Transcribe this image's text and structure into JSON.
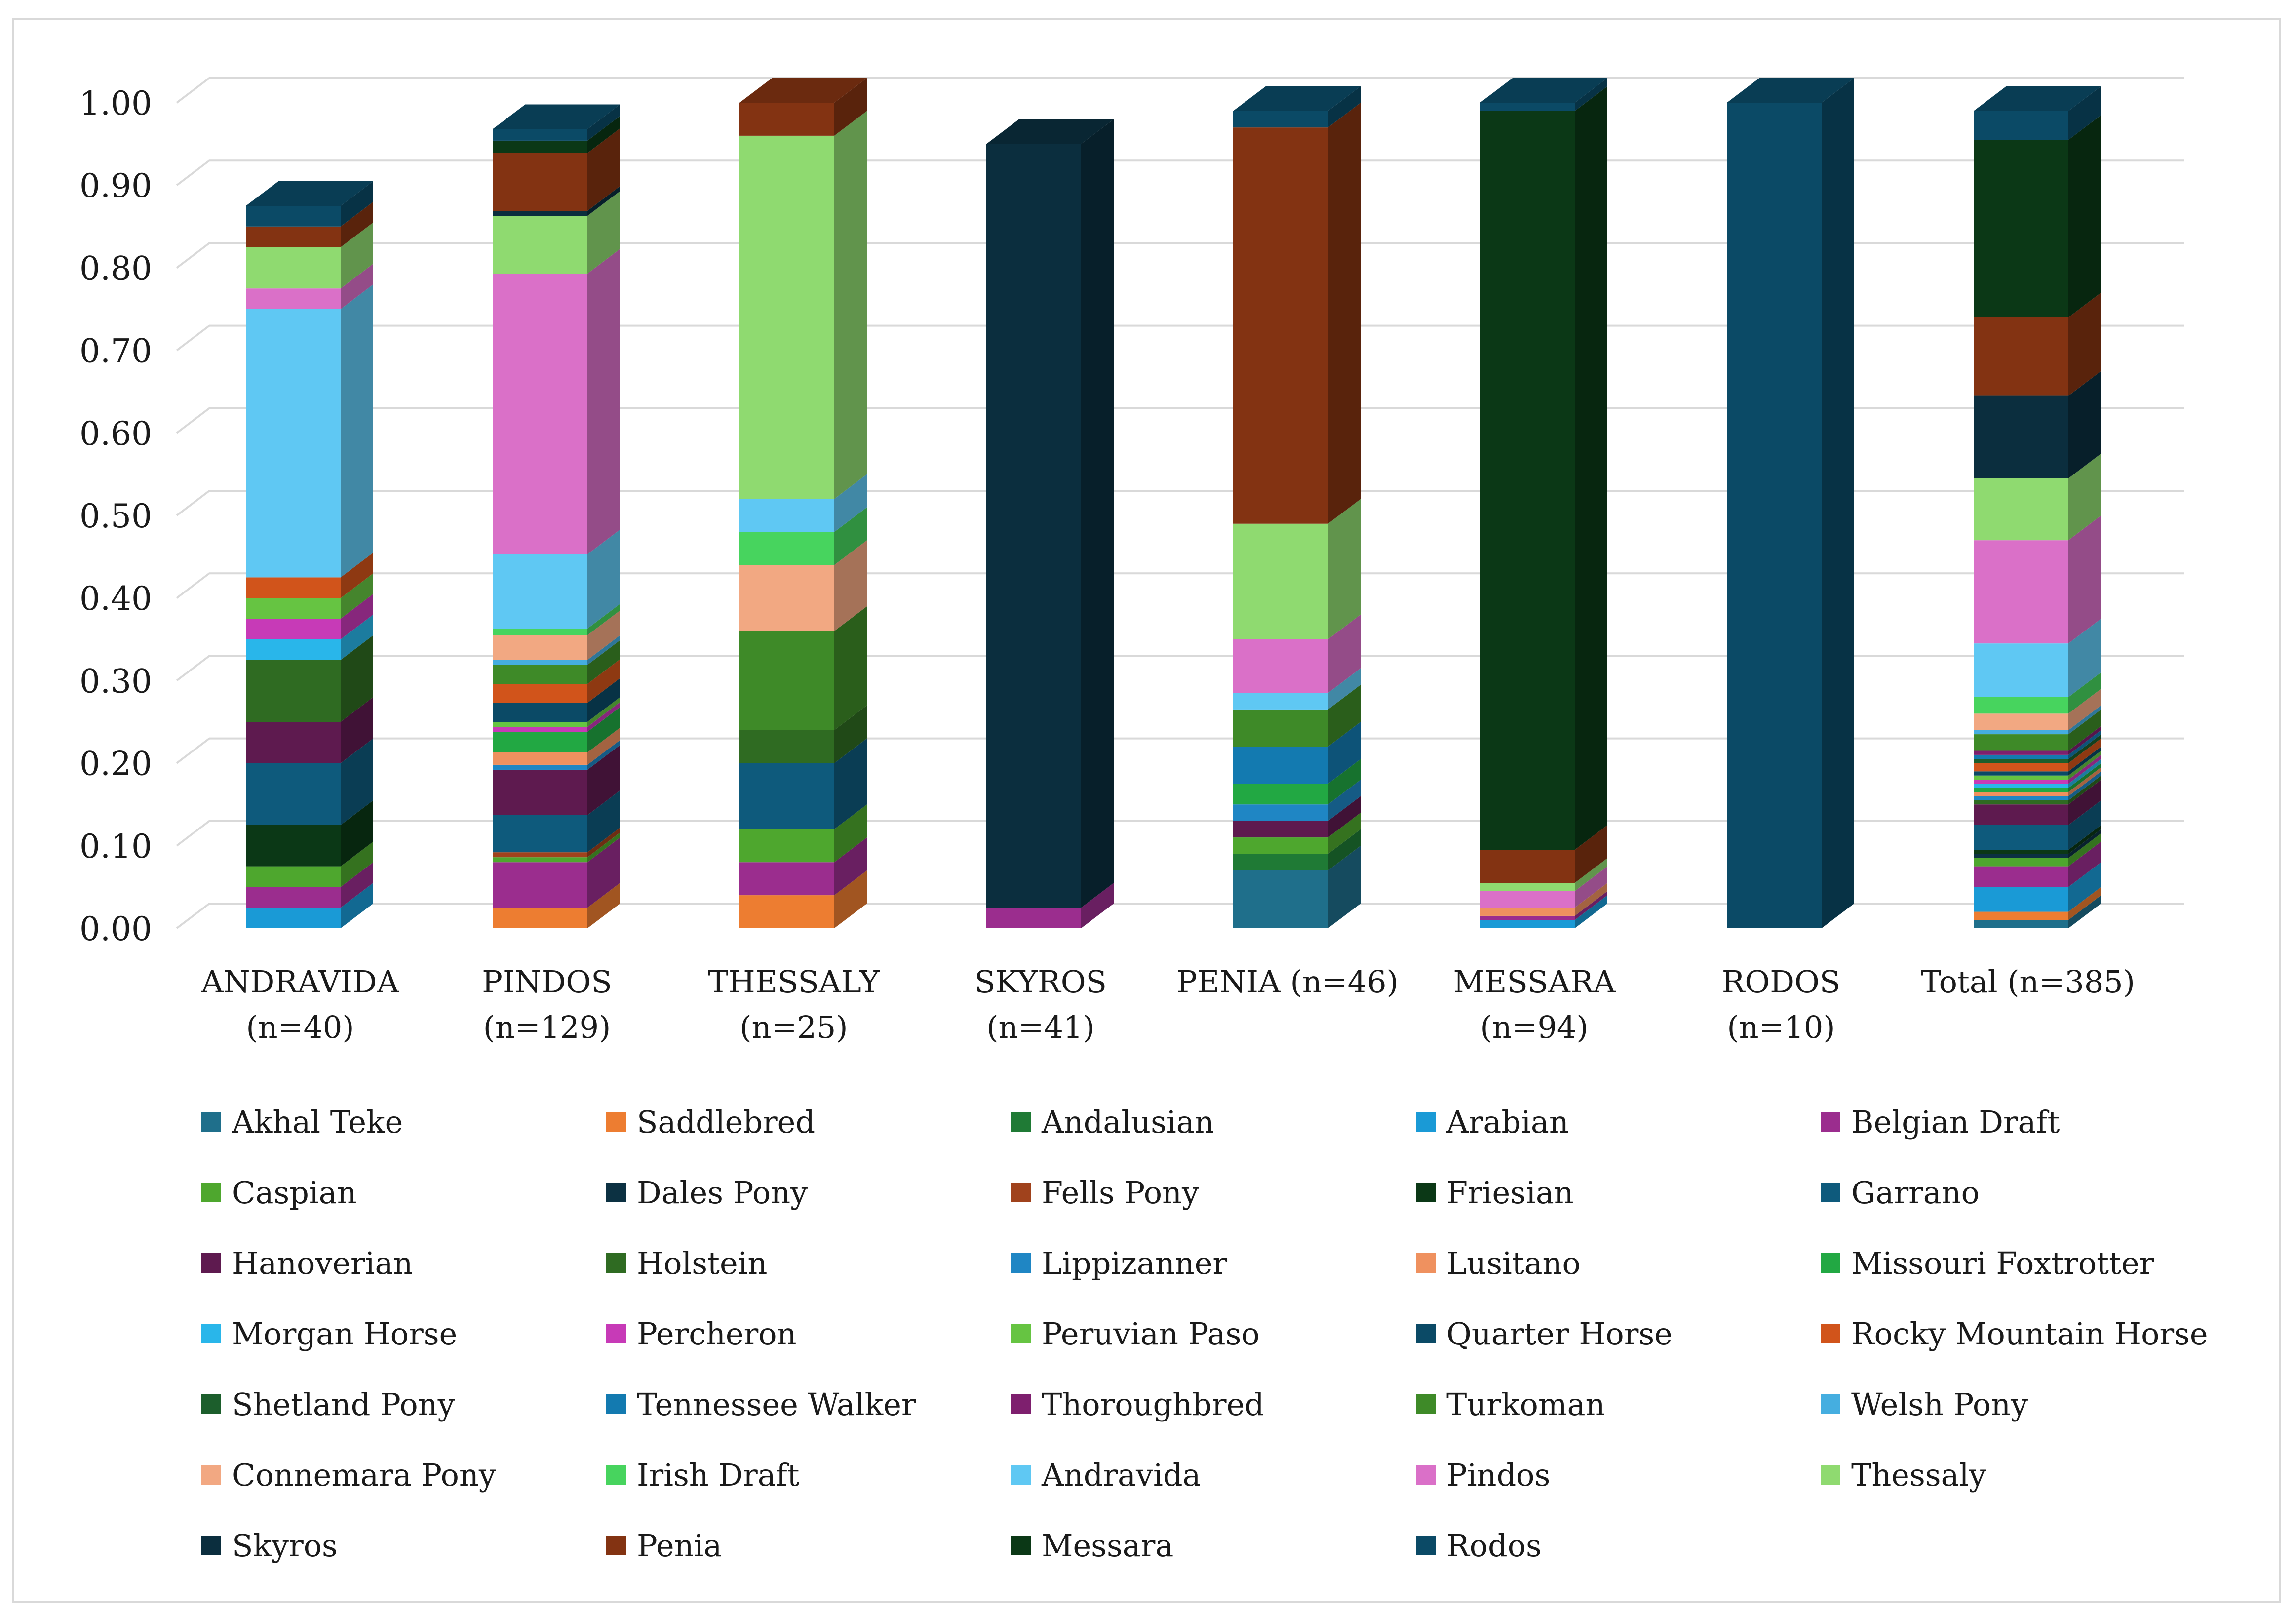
{
  "chart_data": {
    "type": "bar",
    "stacked": true,
    "style": "3d-column",
    "title": "",
    "xlabel": "",
    "ylabel": "",
    "ylim": [
      0,
      1
    ],
    "yticks": [
      "0.00",
      "0.10",
      "0.20",
      "0.30",
      "0.40",
      "0.50",
      "0.60",
      "0.70",
      "0.80",
      "0.90",
      "1.00"
    ],
    "grid": true,
    "legend_position": "bottom",
    "categories": [
      [
        "ANDRAVIDA",
        "(n=40)"
      ],
      [
        "PINDOS",
        "(n=129)"
      ],
      [
        "THESSALY",
        "(n=25)"
      ],
      [
        "SKYROS",
        "(n=41)"
      ],
      [
        "PENIA (n=46)"
      ],
      [
        "MESSARA",
        "(n=94)"
      ],
      [
        "RODOS",
        "(n=10)"
      ],
      [
        "Total (n=385)"
      ]
    ],
    "series": [
      {
        "name": "Akhal Teke",
        "color": "#1f6f8b",
        "values": [
          0,
          0,
          0,
          0,
          0.07,
          0,
          0,
          0.01
        ]
      },
      {
        "name": "Saddlebred",
        "color": "#ed7d31",
        "values": [
          0,
          0.025,
          0.04,
          0,
          0,
          0,
          0,
          0.01
        ]
      },
      {
        "name": "Andalusian",
        "color": "#1f7a35",
        "values": [
          0,
          0,
          0,
          0,
          0.02,
          0,
          0,
          0
        ]
      },
      {
        "name": "Arabian",
        "color": "#1a9ad6",
        "values": [
          0.025,
          0,
          0,
          0,
          0,
          0.01,
          0,
          0.03
        ]
      },
      {
        "name": "Belgian Draft",
        "color": "#9b2d8e",
        "values": [
          0.025,
          0.055,
          0.04,
          0.025,
          0,
          0.005,
          0,
          0.025
        ]
      },
      {
        "name": "Caspian",
        "color": "#4ea72e",
        "values": [
          0.025,
          0.006,
          0.04,
          0,
          0.02,
          0,
          0,
          0.01
        ]
      },
      {
        "name": "Dales Pony",
        "color": "#0c3142",
        "values": [
          0,
          0,
          0,
          0,
          0,
          0,
          0,
          0.005
        ]
      },
      {
        "name": "Fells Pony",
        "color": "#a0421c",
        "values": [
          0,
          0.006,
          0,
          0,
          0,
          0,
          0,
          0
        ]
      },
      {
        "name": "Friesian",
        "color": "#0b3816",
        "values": [
          0.05,
          0,
          0,
          0,
          0,
          0,
          0,
          0.005
        ]
      },
      {
        "name": "Garrano",
        "color": "#0e5a7c",
        "values": [
          0.075,
          0.045,
          0.08,
          0,
          0,
          0,
          0,
          0.03
        ]
      },
      {
        "name": "Hanoverian",
        "color": "#5e1a4f",
        "values": [
          0.05,
          0.055,
          0,
          0,
          0.02,
          0,
          0,
          0.025
        ]
      },
      {
        "name": "Holstein",
        "color": "#2f6b22",
        "values": [
          0.075,
          0,
          0.04,
          0,
          0,
          0,
          0,
          0.005
        ]
      },
      {
        "name": "Lippizanner",
        "color": "#1f86c4",
        "values": [
          0,
          0.006,
          0,
          0,
          0.02,
          0,
          0,
          0.005
        ]
      },
      {
        "name": "Lusitano",
        "color": "#ef915f",
        "values": [
          0,
          0.015,
          0,
          0,
          0,
          0.01,
          0,
          0.005
        ]
      },
      {
        "name": "Missouri Foxtrotter",
        "color": "#22a843",
        "values": [
          0,
          0.025,
          0,
          0,
          0.025,
          0,
          0,
          0.005
        ]
      },
      {
        "name": "Morgan Horse",
        "color": "#29b6ea",
        "values": [
          0.025,
          0,
          0,
          0,
          0,
          0,
          0,
          0.005
        ]
      },
      {
        "name": "Percheron",
        "color": "#c73ab7",
        "values": [
          0.025,
          0.006,
          0,
          0,
          0,
          0,
          0,
          0.005
        ]
      },
      {
        "name": "Peruvian Paso",
        "color": "#66c442",
        "values": [
          0.025,
          0.006,
          0,
          0,
          0,
          0,
          0,
          0.005
        ]
      },
      {
        "name": "Quarter Horse",
        "color": "#0b4a66",
        "values": [
          0,
          0.023,
          0,
          0,
          0,
          0,
          0,
          0.005
        ]
      },
      {
        "name": "Rocky Mountain Horse",
        "color": "#d1541b",
        "values": [
          0.025,
          0.023,
          0,
          0,
          0,
          0,
          0,
          0.01
        ]
      },
      {
        "name": "Shetland Pony",
        "color": "#1c5e2c",
        "values": [
          0,
          0,
          0,
          0,
          0,
          0,
          0,
          0.005
        ]
      },
      {
        "name": "Tennessee Walker",
        "color": "#137ab0",
        "values": [
          0,
          0,
          0,
          0,
          0.045,
          0,
          0,
          0.005
        ]
      },
      {
        "name": "Thoroughbred",
        "color": "#7e1f6e",
        "values": [
          0,
          0,
          0,
          0,
          0,
          0,
          0,
          0.005
        ]
      },
      {
        "name": "Turkoman",
        "color": "#3e8a28",
        "values": [
          0,
          0.023,
          0.12,
          0,
          0.045,
          0,
          0,
          0.02
        ]
      },
      {
        "name": "Welsh Pony",
        "color": "#45aee0",
        "values": [
          0,
          0.006,
          0,
          0,
          0,
          0,
          0,
          0.005
        ]
      },
      {
        "name": "Connemara Pony",
        "color": "#f2a882",
        "values": [
          0,
          0.03,
          0.08,
          0,
          0,
          0,
          0,
          0.02
        ]
      },
      {
        "name": "Irish Draft",
        "color": "#47d45e",
        "values": [
          0,
          0.008,
          0.04,
          0,
          0,
          0,
          0,
          0.02
        ]
      },
      {
        "name": "Andravida",
        "color": "#5fc8f3",
        "values": [
          0.325,
          0.09,
          0.04,
          0,
          0.02,
          0,
          0,
          0.065
        ]
      },
      {
        "name": "Pindos",
        "color": "#da70c8",
        "values": [
          0.025,
          0.34,
          0,
          0,
          0.065,
          0.02,
          0,
          0.125
        ]
      },
      {
        "name": "Thessaly",
        "color": "#8fda70",
        "values": [
          0.05,
          0.07,
          0.44,
          0,
          0.14,
          0.01,
          0,
          0.075
        ]
      },
      {
        "name": "Skyros",
        "color": "#0b2e3e",
        "values": [
          0,
          0.006,
          0,
          0.925,
          0,
          0,
          0,
          0.1
        ]
      },
      {
        "name": "Penia",
        "color": "#833312",
        "values": [
          0.025,
          0.07,
          0.04,
          0,
          0.48,
          0.04,
          0,
          0.095
        ]
      },
      {
        "name": "Messara",
        "color": "#0b3816",
        "values": [
          0,
          0.015,
          0,
          0,
          0,
          0.895,
          0,
          0.215
        ]
      },
      {
        "name": "Rodos",
        "color": "#0b4a66",
        "values": [
          0.025,
          0.014,
          0,
          0,
          0.02,
          0.01,
          1.0,
          0.035
        ]
      }
    ]
  }
}
